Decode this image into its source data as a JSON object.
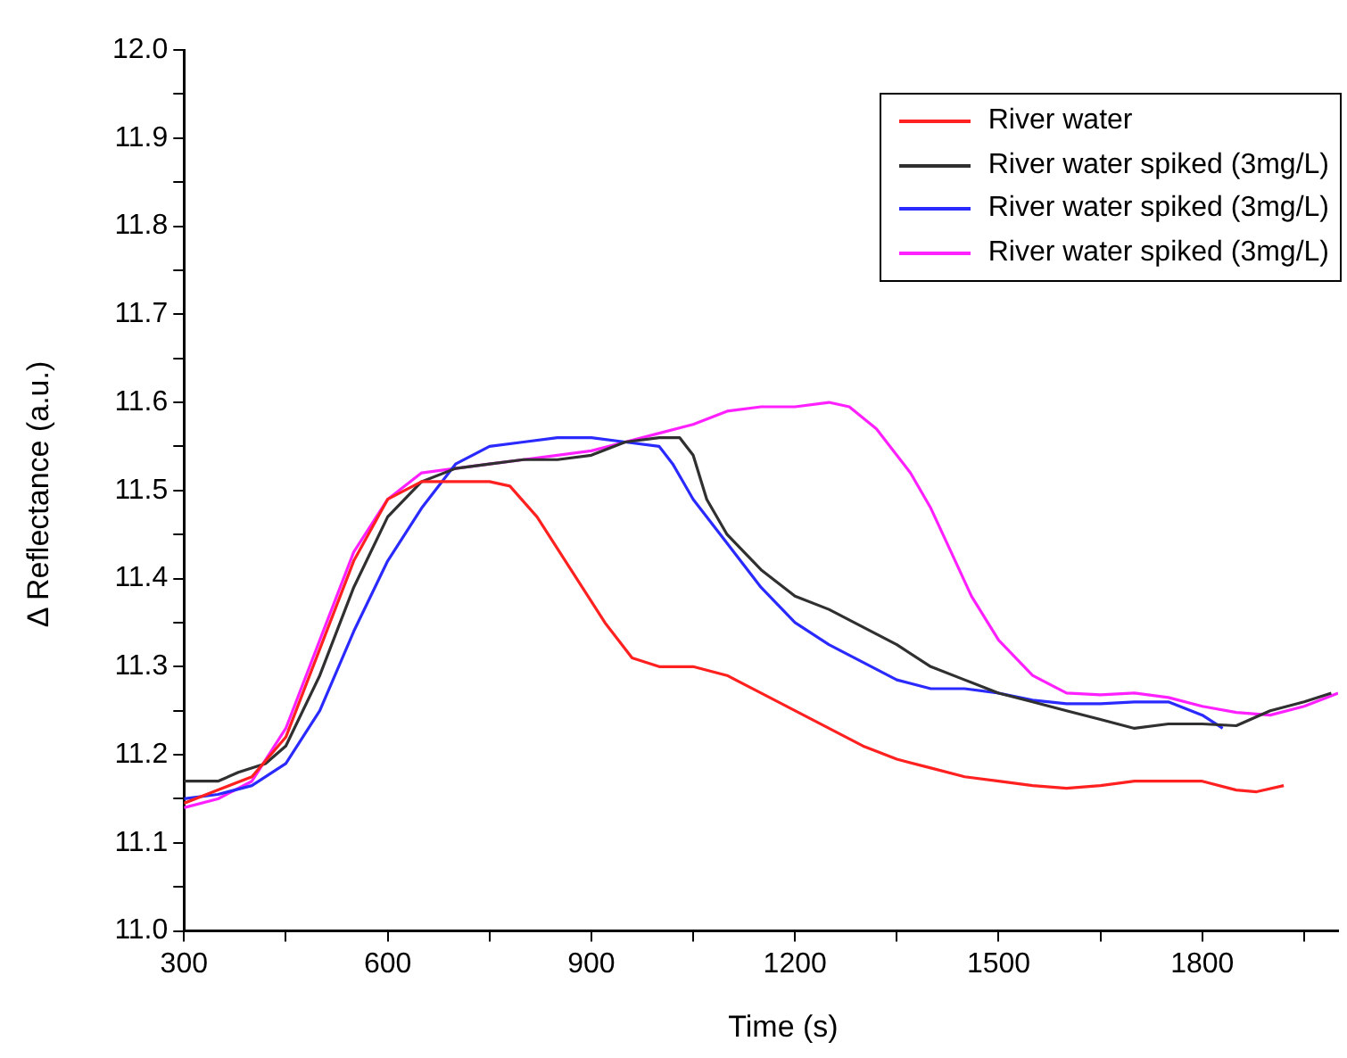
{
  "chart_data": {
    "type": "line",
    "xlabel": "Time (s)",
    "ylabel": "Δ Reflectance (a.u.)",
    "xlim": [
      300,
      2000
    ],
    "ylim": [
      11.0,
      12.0
    ],
    "xticks": [
      300,
      {
        "value": 450,
        "label": null
      },
      600,
      {
        "value": 750,
        "label": null
      },
      900,
      {
        "value": 1050,
        "label": null
      },
      1200,
      {
        "value": 1350,
        "label": null
      },
      1500,
      {
        "value": 1650,
        "label": null
      },
      1800,
      {
        "value": 1950,
        "label": null
      }
    ],
    "yticks": [
      {
        "value": 11,
        "label": "11.0"
      },
      {
        "value": 11.05,
        "label": null
      },
      11.1,
      {
        "value": 11.15,
        "label": null
      },
      11.2,
      {
        "value": 11.25,
        "label": null
      },
      11.3,
      {
        "value": 11.35,
        "label": null
      },
      11.4,
      {
        "value": 11.45,
        "label": null
      },
      11.5,
      {
        "value": 11.55,
        "label": null
      },
      11.6,
      {
        "value": 11.65,
        "label": null
      },
      11.7,
      {
        "value": 11.75,
        "label": null
      },
      11.8,
      {
        "value": 11.85,
        "label": null
      },
      11.9,
      {
        "value": 11.95,
        "label": null
      },
      {
        "value": 12,
        "label": "12.0"
      }
    ],
    "grid": false,
    "legend": "top right",
    "marker": "none",
    "line_style": "solid",
    "series": [
      {
        "name": "River water",
        "color": "#ff2020",
        "x": [
          300,
          350,
          400,
          450,
          500,
          550,
          600,
          650,
          700,
          750,
          780,
          820,
          870,
          920,
          960,
          1000,
          1050,
          1100,
          1150,
          1200,
          1250,
          1300,
          1350,
          1400,
          1450,
          1500,
          1550,
          1600,
          1650,
          1700,
          1750,
          1800,
          1850,
          1880,
          1920
        ],
        "values": [
          11.145,
          11.16,
          11.175,
          11.22,
          11.32,
          11.42,
          11.49,
          11.51,
          11.51,
          11.51,
          11.505,
          11.47,
          11.41,
          11.35,
          11.31,
          11.3,
          11.3,
          11.29,
          11.27,
          11.25,
          11.23,
          11.21,
          11.195,
          11.185,
          11.175,
          11.17,
          11.165,
          11.162,
          11.165,
          11.17,
          11.17,
          11.17,
          11.16,
          11.158,
          11.165
        ]
      },
      {
        "name": "River water spiked (3mg/L)",
        "color": "#303030",
        "x": [
          300,
          350,
          380,
          420,
          450,
          500,
          550,
          600,
          650,
          700,
          750,
          800,
          850,
          900,
          950,
          1000,
          1030,
          1050,
          1070,
          1100,
          1150,
          1200,
          1250,
          1300,
          1350,
          1400,
          1450,
          1500,
          1550,
          1600,
          1650,
          1700,
          1750,
          1800,
          1850,
          1900,
          1950,
          1990
        ],
        "values": [
          11.17,
          11.17,
          11.18,
          11.19,
          11.21,
          11.29,
          11.39,
          11.47,
          11.51,
          11.525,
          11.53,
          11.535,
          11.535,
          11.54,
          11.555,
          11.56,
          11.56,
          11.54,
          11.49,
          11.45,
          11.41,
          11.38,
          11.365,
          11.345,
          11.325,
          11.3,
          11.285,
          11.27,
          11.26,
          11.25,
          11.24,
          11.23,
          11.235,
          11.235,
          11.233,
          11.25,
          11.26,
          11.27
        ]
      },
      {
        "name": "River water spiked (3mg/L)",
        "color": "#2a2aff",
        "x": [
          300,
          350,
          400,
          450,
          500,
          550,
          600,
          650,
          700,
          750,
          800,
          850,
          900,
          950,
          1000,
          1020,
          1050,
          1100,
          1150,
          1200,
          1250,
          1300,
          1350,
          1400,
          1450,
          1500,
          1550,
          1600,
          1650,
          1700,
          1750,
          1800,
          1830
        ],
        "values": [
          11.15,
          11.155,
          11.165,
          11.19,
          11.25,
          11.34,
          11.42,
          11.48,
          11.53,
          11.55,
          11.555,
          11.56,
          11.56,
          11.555,
          11.55,
          11.53,
          11.49,
          11.44,
          11.39,
          11.35,
          11.325,
          11.305,
          11.285,
          11.275,
          11.275,
          11.27,
          11.262,
          11.258,
          11.258,
          11.26,
          11.26,
          11.245,
          11.23
        ]
      },
      {
        "name": "River water spiked (3mg/L)",
        "color": "#ff20ff",
        "x": [
          300,
          350,
          400,
          450,
          500,
          550,
          600,
          650,
          700,
          750,
          800,
          850,
          900,
          950,
          1000,
          1050,
          1100,
          1150,
          1200,
          1250,
          1280,
          1320,
          1370,
          1400,
          1430,
          1460,
          1500,
          1550,
          1600,
          1650,
          1700,
          1750,
          1800,
          1850,
          1900,
          1950,
          2000
        ],
        "values": [
          11.14,
          11.15,
          11.17,
          11.23,
          11.33,
          11.43,
          11.49,
          11.52,
          11.525,
          11.53,
          11.535,
          11.54,
          11.545,
          11.555,
          11.565,
          11.575,
          11.59,
          11.595,
          11.595,
          11.6,
          11.595,
          11.57,
          11.52,
          11.48,
          11.43,
          11.38,
          11.33,
          11.29,
          11.27,
          11.268,
          11.27,
          11.265,
          11.255,
          11.248,
          11.245,
          11.255,
          11.27
        ]
      }
    ]
  }
}
